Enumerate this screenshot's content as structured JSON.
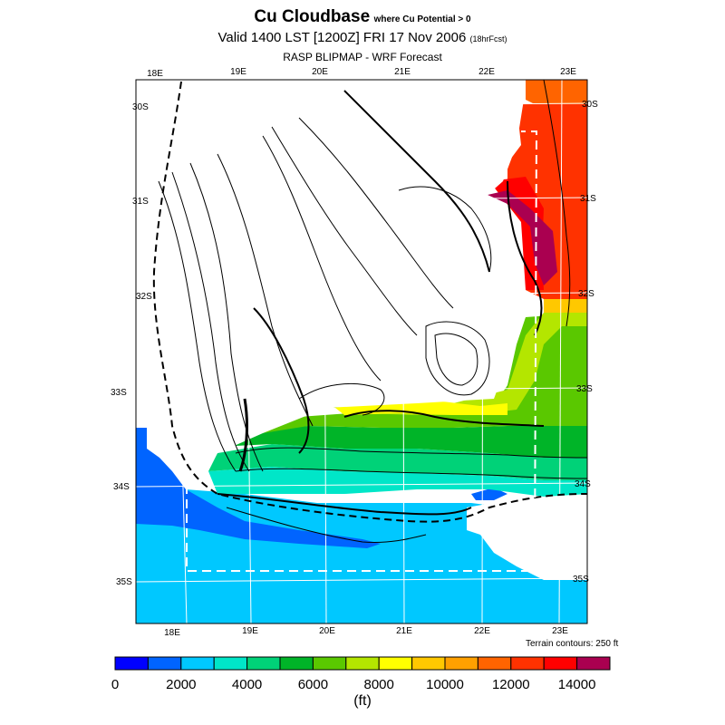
{
  "header": {
    "title": "Cu Cloudbase",
    "title_suffix": "where Cu Potential > 0",
    "valid_line": "Valid 1400 LST [1200Z] FRI 17 Nov 2006",
    "valid_suffix": "(18hrFcst)",
    "model_line": "RASP BLIPMAP - WRF Forecast"
  },
  "map": {
    "lon_labels": [
      "18E",
      "19E",
      "20E",
      "21E",
      "22E",
      "23E"
    ],
    "lat_labels": [
      "30S",
      "31S",
      "32S",
      "33S",
      "34S",
      "35S"
    ],
    "terrain_note": "Terrain contours: 250 ft"
  },
  "colorbar": {
    "colors": [
      "#0000ff",
      "#0064ff",
      "#00c8ff",
      "#00e6c8",
      "#00d278",
      "#00b428",
      "#5ac800",
      "#b4e600",
      "#ffff00",
      "#ffc800",
      "#ffa000",
      "#ff6400",
      "#ff3200",
      "#ff0000",
      "#aa0050"
    ],
    "tick_labels": [
      "0",
      "2000",
      "4000",
      "6000",
      "8000",
      "10000",
      "12000",
      "14000"
    ],
    "unit": "(ft)"
  }
}
